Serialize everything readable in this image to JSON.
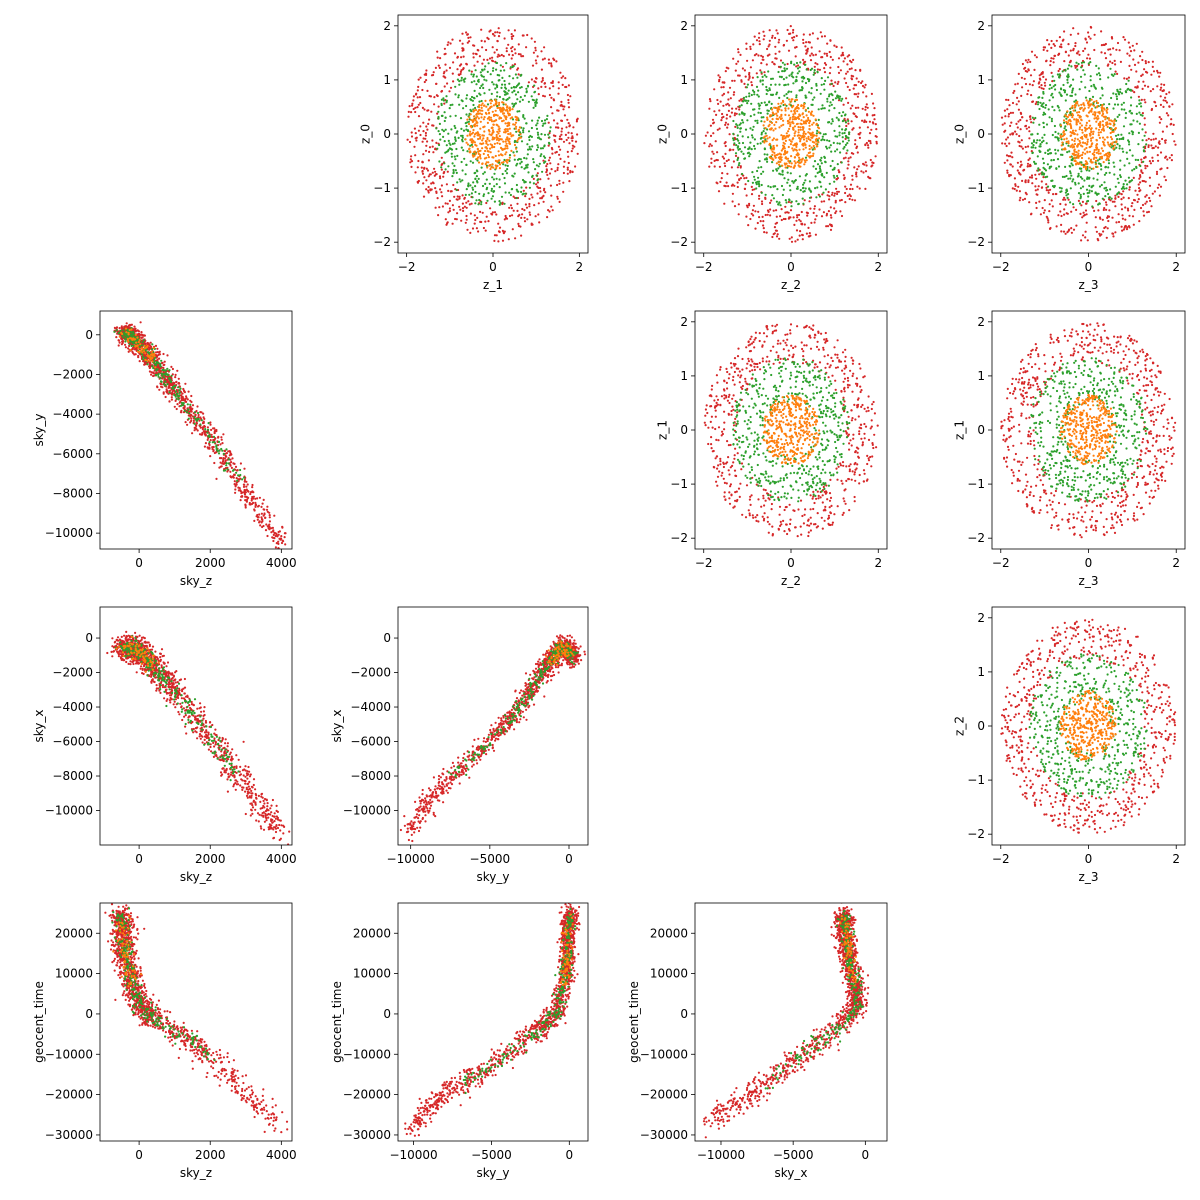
{
  "colors": {
    "red": "#d62728",
    "green": "#2ca02c",
    "orange": "#ff7f0e"
  },
  "chart_data": [
    {
      "type": "scatter",
      "panel": "top-left-row0-col1",
      "xlabel": "z_1",
      "ylabel": "z_0",
      "xlim": [
        -2.2,
        2.2
      ],
      "ylim": [
        -2.2,
        2.2
      ],
      "xticks": [
        -2,
        0,
        2
      ],
      "yticks": [
        -2,
        -1,
        0,
        1,
        2
      ],
      "shape": "rings",
      "ring_radii": {
        "red": [
          1.25,
          2.0
        ],
        "green": [
          0.5,
          1.35
        ],
        "orange": [
          0.0,
          0.65
        ]
      }
    },
    {
      "type": "scatter",
      "panel": "row0-col2",
      "xlabel": "z_2",
      "ylabel": "z_0",
      "xlim": [
        -2.2,
        2.2
      ],
      "ylim": [
        -2.2,
        2.2
      ],
      "xticks": [
        -2,
        0,
        2
      ],
      "yticks": [
        -2,
        -1,
        0,
        1,
        2
      ],
      "shape": "rings",
      "ring_radii": {
        "red": [
          1.25,
          2.0
        ],
        "green": [
          0.5,
          1.35
        ],
        "orange": [
          0.0,
          0.65
        ]
      }
    },
    {
      "type": "scatter",
      "panel": "row0-col3",
      "xlabel": "z_3",
      "ylabel": "z_0",
      "xlim": [
        -2.2,
        2.2
      ],
      "ylim": [
        -2.2,
        2.2
      ],
      "xticks": [
        -2,
        0,
        2
      ],
      "yticks": [
        -2,
        -1,
        0,
        1,
        2
      ],
      "shape": "rings",
      "ring_radii": {
        "red": [
          1.25,
          2.0
        ],
        "green": [
          0.5,
          1.35
        ],
        "orange": [
          0.0,
          0.65
        ]
      }
    },
    {
      "type": "scatter",
      "panel": "row1-col0",
      "xlabel": "sky_z",
      "ylabel": "sky_y",
      "xlim": [
        -1100,
        4300
      ],
      "ylim": [
        -10800,
        1200
      ],
      "xticks": [
        0,
        2000,
        4000
      ],
      "yticks": [
        -10000,
        -8000,
        -6000,
        -4000,
        -2000,
        0
      ],
      "shape": "path",
      "spread": [
        150,
        180
      ],
      "path": [
        [
          -400,
          200
        ],
        [
          0,
          -500
        ],
        [
          500,
          -1500
        ],
        [
          1000,
          -2800
        ],
        [
          2000,
          -5200
        ],
        [
          3000,
          -7800
        ],
        [
          4000,
          -10500
        ]
      ]
    },
    {
      "type": "scatter",
      "panel": "row1-col2",
      "xlabel": "z_2",
      "ylabel": "z_1",
      "xlim": [
        -2.2,
        2.2
      ],
      "ylim": [
        -2.2,
        2.2
      ],
      "xticks": [
        -2,
        0,
        2
      ],
      "yticks": [
        -2,
        -1,
        0,
        1,
        2
      ],
      "shape": "rings",
      "ring_radii": {
        "red": [
          1.25,
          2.0
        ],
        "green": [
          0.5,
          1.35
        ],
        "orange": [
          0.0,
          0.65
        ]
      }
    },
    {
      "type": "scatter",
      "panel": "row1-col3",
      "xlabel": "z_3",
      "ylabel": "z_1",
      "xlim": [
        -2.2,
        2.2
      ],
      "ylim": [
        -2.2,
        2.2
      ],
      "xticks": [
        -2,
        0,
        2
      ],
      "yticks": [
        -2,
        -1,
        0,
        1,
        2
      ],
      "shape": "rings",
      "ring_radii": {
        "red": [
          1.25,
          2.0
        ],
        "green": [
          0.5,
          1.35
        ],
        "orange": [
          0.0,
          0.65
        ]
      }
    },
    {
      "type": "scatter",
      "panel": "row2-col0",
      "xlabel": "sky_z",
      "ylabel": "sky_x",
      "xlim": [
        -1100,
        4300
      ],
      "ylim": [
        -12000,
        1800
      ],
      "xticks": [
        0,
        2000,
        4000
      ],
      "yticks": [
        -10000,
        -8000,
        -6000,
        -4000,
        -2000,
        0
      ],
      "shape": "path",
      "spread": [
        180,
        350
      ],
      "path": [
        [
          -400,
          -500
        ],
        [
          0,
          -800
        ],
        [
          500,
          -1800
        ],
        [
          1000,
          -3200
        ],
        [
          2000,
          -5800
        ],
        [
          3000,
          -8500
        ],
        [
          4000,
          -11300
        ]
      ]
    },
    {
      "type": "scatter",
      "panel": "row2-col1",
      "xlabel": "sky_y",
      "ylabel": "sky_x",
      "xlim": [
        -10800,
        1200
      ],
      "ylim": [
        -12000,
        1800
      ],
      "xticks": [
        -10000,
        -5000,
        0
      ],
      "yticks": [
        -10000,
        -8000,
        -6000,
        -4000,
        -2000,
        0
      ],
      "shape": "path",
      "spread": [
        250,
        300
      ],
      "path": [
        [
          200,
          -1000
        ],
        [
          -500,
          -500
        ],
        [
          -1500,
          -1800
        ],
        [
          -3000,
          -3800
        ],
        [
          -5000,
          -6000
        ],
        [
          -8000,
          -8500
        ],
        [
          -10200,
          -11200
        ]
      ]
    },
    {
      "type": "scatter",
      "panel": "row2-col3",
      "xlabel": "z_3",
      "ylabel": "z_2",
      "xlim": [
        -2.2,
        2.2
      ],
      "ylim": [
        -2.2,
        2.2
      ],
      "xticks": [
        -2,
        0,
        2
      ],
      "yticks": [
        -2,
        -1,
        0,
        1,
        2
      ],
      "shape": "rings",
      "ring_radii": {
        "red": [
          1.25,
          2.0
        ],
        "green": [
          0.5,
          1.35
        ],
        "orange": [
          0.0,
          0.65
        ]
      }
    },
    {
      "type": "scatter",
      "panel": "row3-col0",
      "xlabel": "sky_z",
      "ylabel": "geocent_time",
      "xlim": [
        -1100,
        4300
      ],
      "ylim": [
        -31500,
        27500
      ],
      "xticks": [
        0,
        2000,
        4000
      ],
      "yticks": [
        -30000,
        -20000,
        -10000,
        0,
        10000,
        20000
      ],
      "shape": "path",
      "spread": [
        150,
        1500
      ],
      "path": [
        [
          -500,
          24000
        ],
        [
          -400,
          15000
        ],
        [
          -200,
          8000
        ],
        [
          0,
          2000
        ],
        [
          500,
          -2000
        ],
        [
          1500,
          -7000
        ],
        [
          2500,
          -15000
        ],
        [
          4000,
          -28000
        ]
      ]
    },
    {
      "type": "scatter",
      "panel": "row3-col1",
      "xlabel": "sky_y",
      "ylabel": "geocent_time",
      "xlim": [
        -11000,
        1200
      ],
      "ylim": [
        -31500,
        27500
      ],
      "xticks": [
        -10000,
        -5000,
        0
      ],
      "yticks": [
        -30000,
        -20000,
        -10000,
        0,
        10000,
        20000
      ],
      "shape": "path",
      "spread": [
        250,
        1500
      ],
      "path": [
        [
          0,
          24000
        ],
        [
          -100,
          15000
        ],
        [
          -300,
          8000
        ],
        [
          -800,
          0
        ],
        [
          -2000,
          -4000
        ],
        [
          -5000,
          -13000
        ],
        [
          -8000,
          -20000
        ],
        [
          -10200,
          -28000
        ]
      ]
    },
    {
      "type": "scatter",
      "panel": "row3-col2",
      "xlabel": "sky_x",
      "ylabel": "geocent_time",
      "xlim": [
        -11800,
        1500
      ],
      "ylim": [
        -31500,
        27500
      ],
      "xticks": [
        -10000,
        -5000,
        0
      ],
      "yticks": [
        -30000,
        -20000,
        -10000,
        0,
        10000,
        20000
      ],
      "shape": "path",
      "spread": [
        300,
        1500
      ],
      "path": [
        [
          -1500,
          24000
        ],
        [
          -1200,
          15000
        ],
        [
          -800,
          8000
        ],
        [
          -500,
          2000
        ],
        [
          -2000,
          -4000
        ],
        [
          -5000,
          -12000
        ],
        [
          -8000,
          -20000
        ],
        [
          -11000,
          -27000
        ]
      ]
    }
  ]
}
